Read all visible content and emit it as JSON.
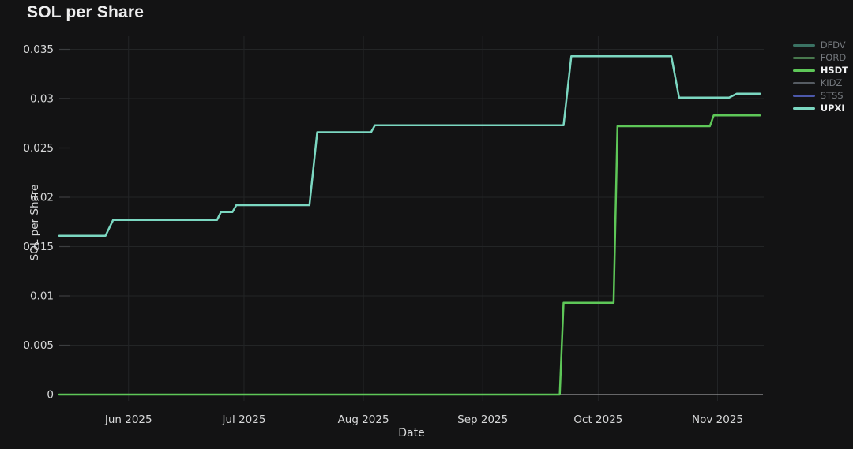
{
  "title": "SOL per Share",
  "axis": {
    "x_title": "Date",
    "y_title": "SOL per Share"
  },
  "colors": {
    "background": "#131314",
    "grid": "#232526",
    "zero_line": "#98999b",
    "tick_text": "#d7d8d9",
    "title_text": "#ededee"
  },
  "legend": {
    "position": "right",
    "items": [
      {
        "label": "DFDV",
        "color": "#3a7263",
        "active": false
      },
      {
        "label": "FORD",
        "color": "#48784d",
        "active": false
      },
      {
        "label": "HSDT",
        "color": "#5ec758",
        "active": true
      },
      {
        "label": "KIDZ",
        "color": "#565c63",
        "active": false
      },
      {
        "label": "STSS",
        "color": "#4c58aa",
        "active": false
      },
      {
        "label": "UPXI",
        "color": "#7bd7c1",
        "active": true
      }
    ]
  },
  "chart_data": {
    "type": "line",
    "title": "SOL per Share",
    "xlabel": "Date",
    "ylabel": "SOL per Share",
    "grid": true,
    "legend_position": "right",
    "x_range": [
      "2025-05-14",
      "2025-11-13"
    ],
    "ylim": [
      0,
      0.0365
    ],
    "y_ticks": [
      {
        "value": 0,
        "label": "0"
      },
      {
        "value": 0.005,
        "label": "0.005"
      },
      {
        "value": 0.01,
        "label": "0.01"
      },
      {
        "value": 0.015,
        "label": "0.015"
      },
      {
        "value": 0.02,
        "label": "0.02"
      },
      {
        "value": 0.025,
        "label": "0.025"
      },
      {
        "value": 0.03,
        "label": "0.03"
      },
      {
        "value": 0.035,
        "label": "0.035"
      }
    ],
    "x_ticks": [
      {
        "date": "2025-06-01",
        "label": "Jun 2025"
      },
      {
        "date": "2025-07-01",
        "label": "Jul 2025"
      },
      {
        "date": "2025-08-01",
        "label": "Aug 2025"
      },
      {
        "date": "2025-09-01",
        "label": "Sep 2025"
      },
      {
        "date": "2025-10-01",
        "label": "Oct 2025"
      },
      {
        "date": "2025-11-01",
        "label": "Nov 2025"
      }
    ],
    "hidden_series": [
      "DFDV",
      "FORD",
      "KIDZ",
      "STSS"
    ],
    "series": [
      {
        "name": "HSDT",
        "color": "#5ec758",
        "points": [
          [
            "2025-05-14",
            0.0
          ],
          [
            "2025-09-21",
            0.0
          ],
          [
            "2025-09-22",
            0.0093
          ],
          [
            "2025-10-05",
            0.0093
          ],
          [
            "2025-10-06",
            0.0272
          ],
          [
            "2025-10-30",
            0.0272
          ],
          [
            "2025-10-31",
            0.0283
          ],
          [
            "2025-11-12",
            0.0283
          ]
        ]
      },
      {
        "name": "UPXI",
        "color": "#7bd7c1",
        "points": [
          [
            "2025-05-14",
            0.0161
          ],
          [
            "2025-05-26",
            0.0161
          ],
          [
            "2025-05-28",
            0.0177
          ],
          [
            "2025-06-24",
            0.0177
          ],
          [
            "2025-06-25",
            0.0185
          ],
          [
            "2025-06-28",
            0.0185
          ],
          [
            "2025-06-29",
            0.0192
          ],
          [
            "2025-07-18",
            0.0192
          ],
          [
            "2025-07-20",
            0.0266
          ],
          [
            "2025-08-03",
            0.0266
          ],
          [
            "2025-08-04",
            0.0273
          ],
          [
            "2025-09-22",
            0.0273
          ],
          [
            "2025-09-24",
            0.0343
          ],
          [
            "2025-10-20",
            0.0343
          ],
          [
            "2025-10-22",
            0.0301
          ],
          [
            "2025-11-04",
            0.0301
          ],
          [
            "2025-11-06",
            0.0305
          ],
          [
            "2025-11-12",
            0.0305
          ]
        ]
      }
    ]
  }
}
